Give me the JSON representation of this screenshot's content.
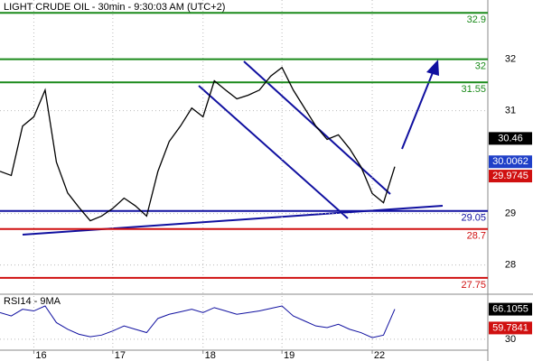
{
  "chart_data": {
    "type": "line",
    "title": "LIGHT CRUDE OIL - 30min - 9:30:03 AM (UTC+2)",
    "categories": [
      null,
      null,
      null,
      "16",
      null,
      null,
      null,
      null,
      null,
      null,
      "17",
      null,
      null,
      null,
      null,
      null,
      null,
      null,
      "18",
      null,
      null,
      null,
      null,
      null,
      null,
      "19",
      null,
      null,
      null,
      null,
      null,
      null,
      null,
      "22",
      null,
      null
    ],
    "series": [
      {
        "name": "LIGHT CRUDE OIL",
        "color": "#000000",
        "values": [
          29.82,
          29.74,
          30.7,
          30.88,
          31.4,
          30.0,
          29.4,
          29.12,
          28.86,
          28.95,
          29.1,
          29.3,
          29.15,
          28.95,
          29.82,
          30.4,
          30.7,
          31.05,
          30.88,
          31.58,
          31.4,
          31.23,
          31.3,
          31.4,
          31.67,
          31.84,
          31.4,
          31.05,
          30.7,
          30.44,
          30.53,
          30.26,
          29.91,
          29.39,
          29.21,
          29.91
        ]
      }
    ],
    "ylim": [
      27.45,
      33.15
    ],
    "yticks": [
      32,
      31,
      29,
      28
    ],
    "levels": [
      {
        "value": 32.9,
        "color": "#1a8a1a"
      },
      {
        "value": 32,
        "color": "#1a8a1a"
      },
      {
        "value": 31.55,
        "color": "#1a8a1a"
      },
      {
        "value": 29.05,
        "color": "#1010a0"
      },
      {
        "value": 28.7,
        "color": "#d01010"
      },
      {
        "value": 27.75,
        "color": "#d01010"
      }
    ],
    "markers": [
      {
        "value": 30.46,
        "color": "#000000"
      },
      {
        "value": 30.0062,
        "color": "#1f3fc8"
      },
      {
        "value": 29.9745,
        "color": "#d01010"
      }
    ],
    "rsi": {
      "label": "RSI14 - 9MA",
      "ylim": [
        18,
        83
      ],
      "yticks": [
        30
      ],
      "values": [
        62,
        58,
        66,
        64,
        70,
        50,
        42,
        36,
        33,
        35,
        40,
        46,
        42,
        38,
        55,
        60,
        63,
        66,
        62,
        68,
        64,
        60,
        62,
        64,
        67,
        70,
        58,
        52,
        46,
        44,
        48,
        42,
        38,
        32,
        35,
        66.1055
      ],
      "ma_label": 59.7841
    }
  }
}
